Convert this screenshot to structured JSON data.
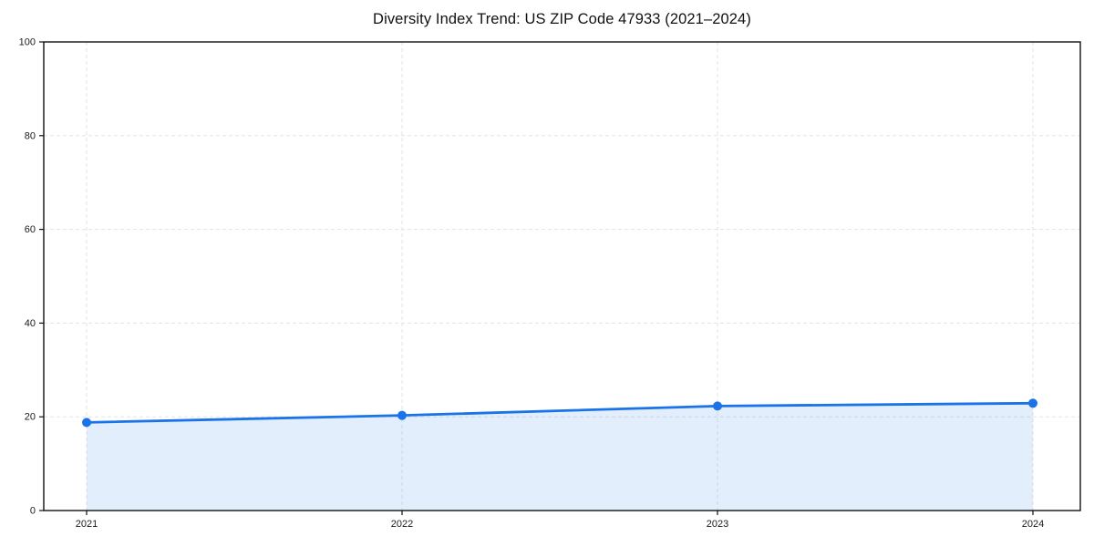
{
  "chart_data": {
    "type": "line",
    "title": "Diversity Index Trend: US ZIP Code 47933 (2021–2024)",
    "x": [
      2021,
      2022,
      2023,
      2024
    ],
    "xticks": [
      "2021",
      "2022",
      "2023",
      "2024"
    ],
    "series": [
      {
        "name": "Diversity Index",
        "values": [
          18.8,
          20.3,
          22.3,
          22.9
        ]
      }
    ],
    "xlabel": "",
    "ylabel": "",
    "ylim": [
      0,
      100
    ],
    "yticks": [
      0,
      20,
      40,
      60,
      80,
      100
    ],
    "grid": true,
    "grid_style": "dashed",
    "legend": "none",
    "area_fill": true,
    "marker": "circle",
    "colors": {
      "line": "#1a73e8",
      "marker": "#1a73e8",
      "fill": "rgba(26,115,232,0.12)",
      "grid": "#e3e3e3",
      "axis": "#111111",
      "tick_text": "#1a1a1a",
      "background": "#ffffff"
    }
  }
}
